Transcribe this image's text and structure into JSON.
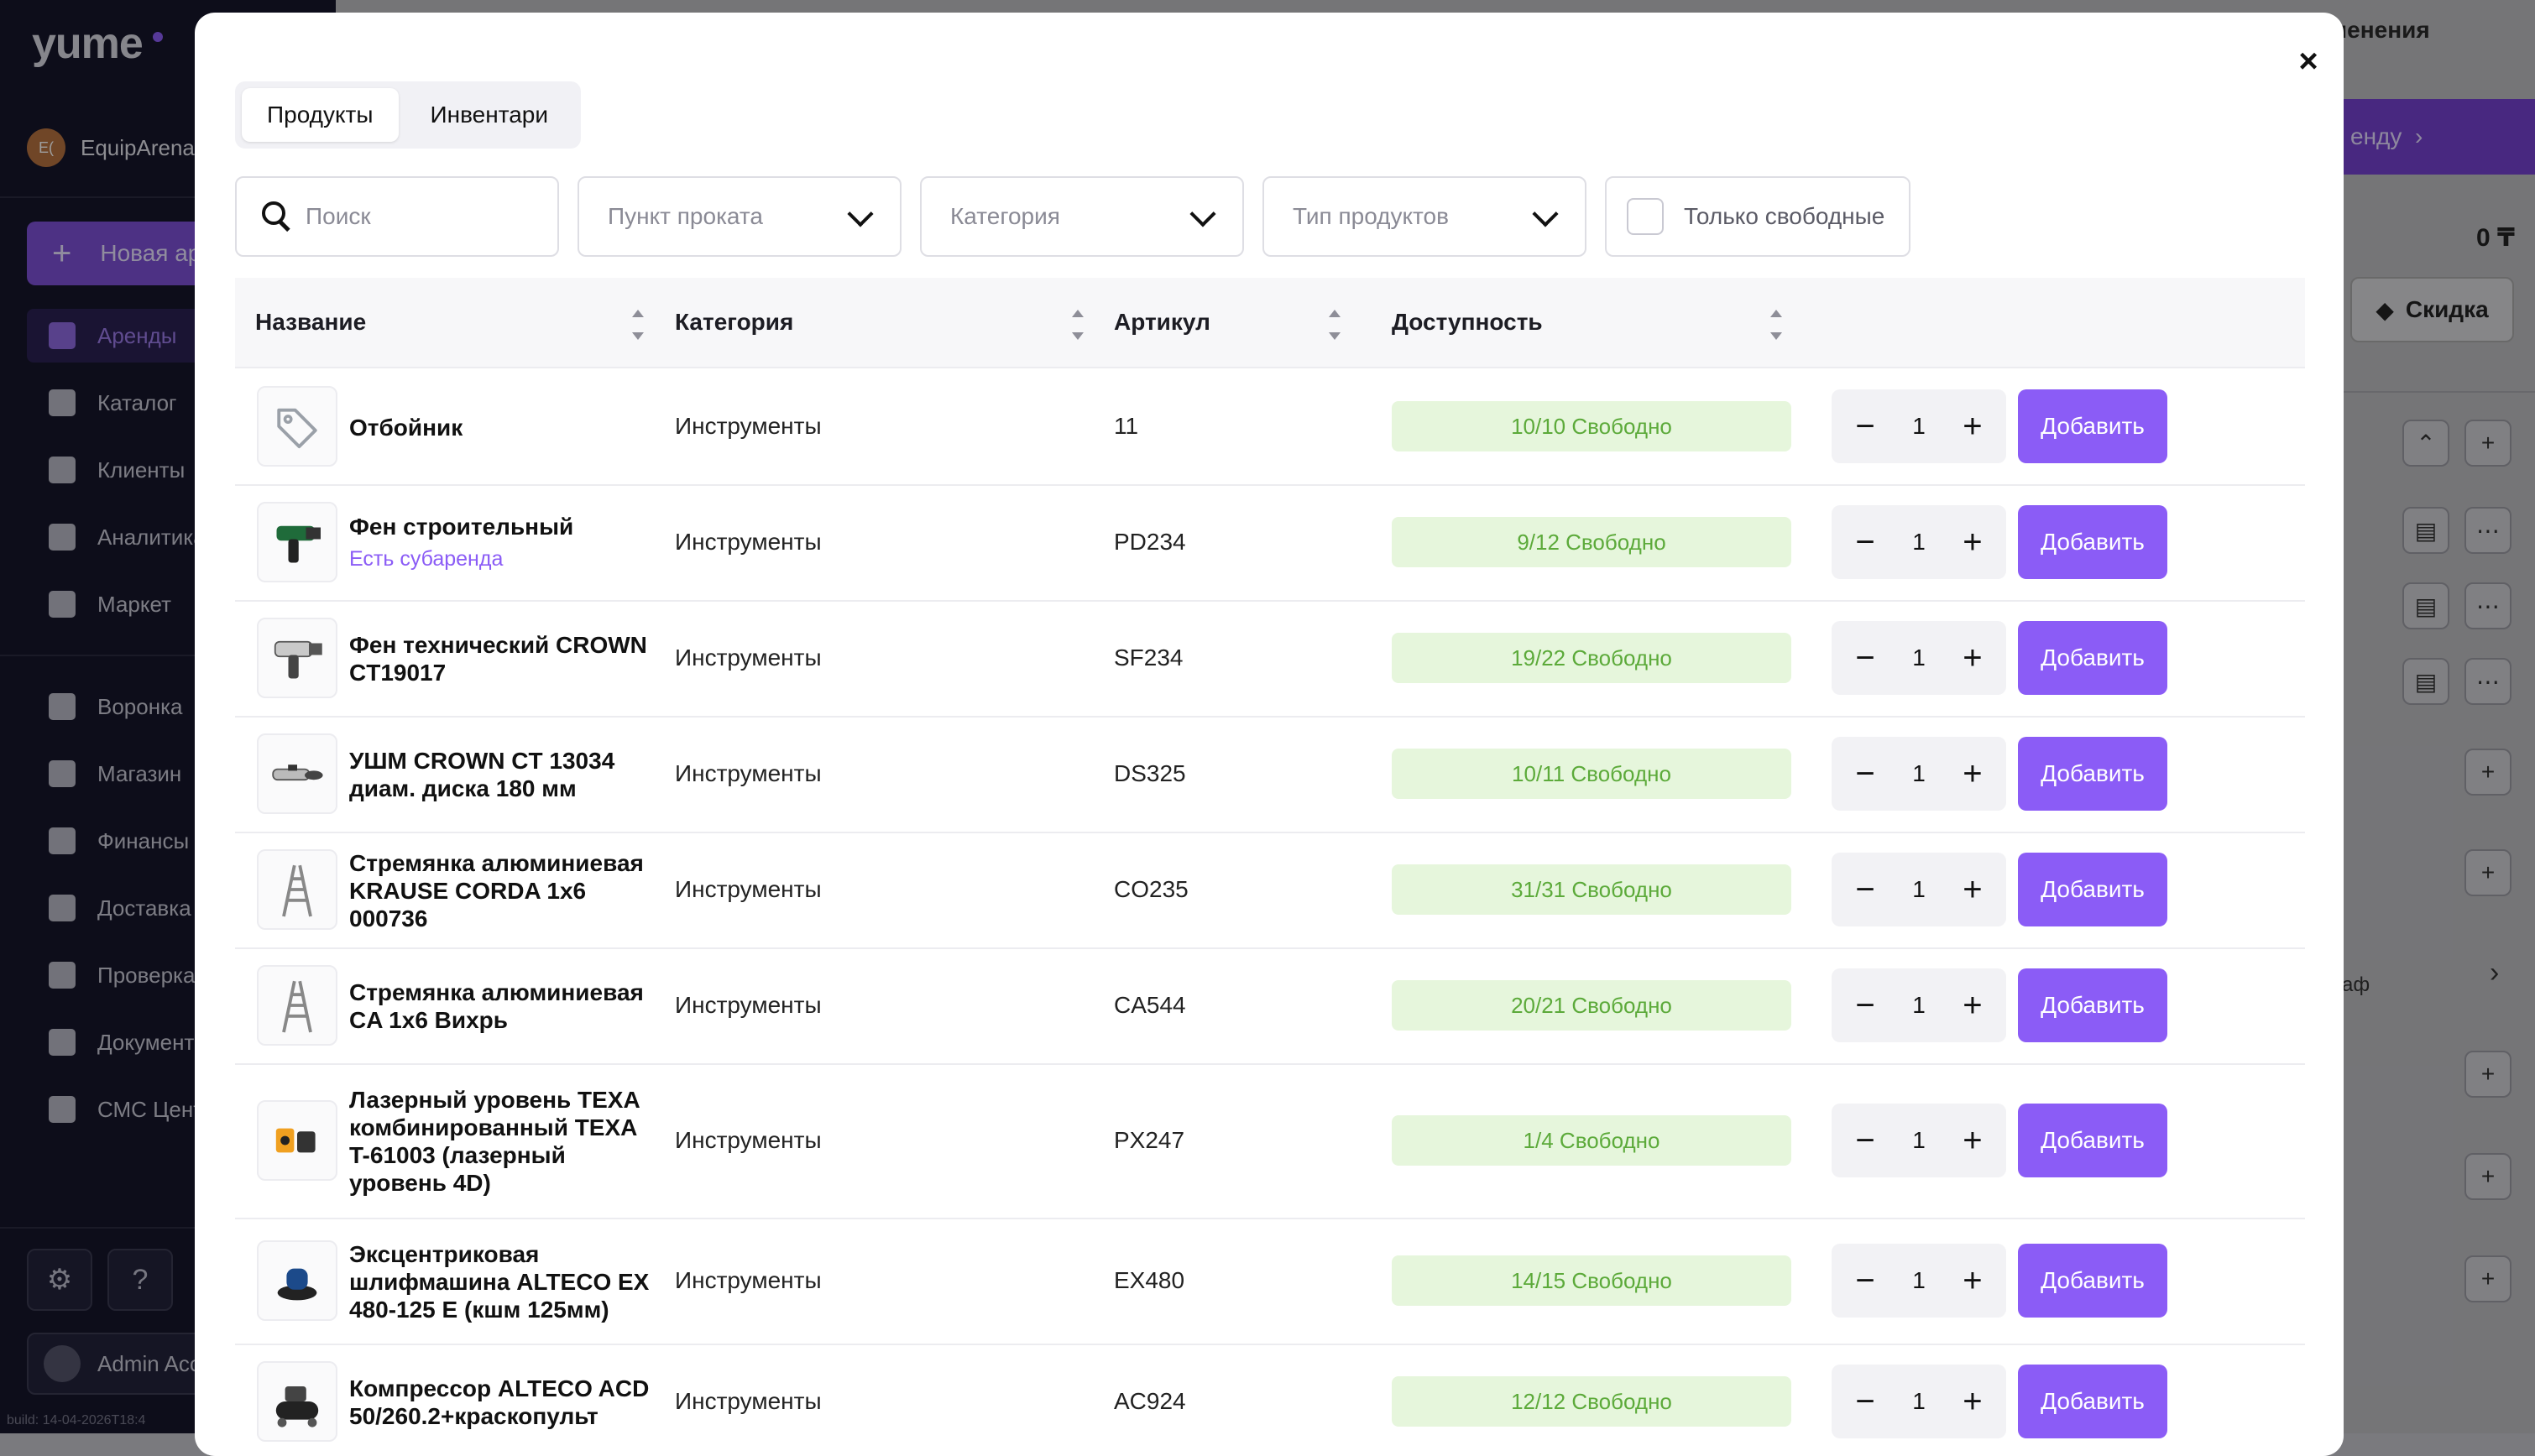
{
  "app": {
    "logo": "yume",
    "org_initials": "E(",
    "org_name": "EquipArena",
    "new_button": "Новая аренда",
    "nav": [
      {
        "label": "Аренды",
        "icon": "list-icon",
        "active": true
      },
      {
        "label": "Каталог",
        "icon": "archive-icon"
      },
      {
        "label": "Клиенты",
        "icon": "users-icon"
      },
      {
        "label": "Аналитика",
        "icon": "analytics-icon"
      },
      {
        "label": "Маркет",
        "icon": "puzzle-icon"
      },
      {
        "label": "Воронка",
        "icon": "funnel-icon"
      },
      {
        "label": "Магазин",
        "icon": "store-icon"
      },
      {
        "label": "Финансы",
        "icon": "finance-icon"
      },
      {
        "label": "Доставка",
        "icon": "truck-icon"
      },
      {
        "label": "Проверка",
        "icon": "scan-icon"
      },
      {
        "label": "Документы",
        "icon": "document-icon"
      },
      {
        "label": "СМС Центр",
        "icon": "sms-icon"
      }
    ],
    "settings_icon": "⚙",
    "help_icon": "?",
    "admin_name": "Admin Account",
    "build": "build: 14-04-2026T18:4"
  },
  "background": {
    "save_changes": "ь изменения",
    "rent_button": "енду",
    "total": "0 ₸",
    "discount": "Скидка",
    "small_text": "аф"
  },
  "modal": {
    "close": "×",
    "tabs": [
      {
        "label": "Продукты",
        "active": true
      },
      {
        "label": "Инвентари",
        "active": false
      }
    ],
    "filters": {
      "search_placeholder": "Поиск",
      "rental_point": "Пункт проката",
      "category": "Категория",
      "product_type": "Тип продуктов",
      "only_free": "Только свободные"
    },
    "columns": [
      "Название",
      "Категория",
      "Артикул",
      "Доступность"
    ],
    "add_label": "Добавить",
    "rows": [
      {
        "name": "Отбойник",
        "sub": "",
        "category": "Инструменты",
        "sku": "11",
        "availability": "10/10 Свободно",
        "qty": "1",
        "thumb": "tag"
      },
      {
        "name": "Фен строительный",
        "sub": "Есть субаренда",
        "category": "Инструменты",
        "sku": "PD234",
        "availability": "9/12 Свободно",
        "qty": "1",
        "thumb": "heatgun"
      },
      {
        "name": "Фен технический CROWN CT19017",
        "sub": "",
        "category": "Инструменты",
        "sku": "SF234",
        "availability": "19/22 Свободно",
        "qty": "1",
        "thumb": "heatgun2"
      },
      {
        "name": "УШМ CROWN CT 13034 диам. диска 180 мм",
        "sub": "",
        "category": "Инструменты",
        "sku": "DS325",
        "availability": "10/11 Свободно",
        "qty": "1",
        "thumb": "grinder"
      },
      {
        "name": "Стремянка алюминиевая KRAUSE CORDA 1x6 000736",
        "sub": "",
        "category": "Инструменты",
        "sku": "CO235",
        "availability": "31/31 Свободно",
        "qty": "1",
        "thumb": "ladder"
      },
      {
        "name": "Стремянка алюминиевая CA 1x6 Вихрь",
        "sub": "",
        "category": "Инструменты",
        "sku": "CA544",
        "availability": "20/21 Свободно",
        "qty": "1",
        "thumb": "ladder"
      },
      {
        "name": "Лазерный уровень TEXA комбинированный TEXA T-61003 (лазерный уровень 4D)",
        "sub": "",
        "category": "Инструменты",
        "sku": "PX247",
        "availability": "1/4 Свободно",
        "qty": "1",
        "thumb": "laser"
      },
      {
        "name": "Эксцентриковая шлифмашина ALTECO EX 480-125 E (кшм 125мм)",
        "sub": "",
        "category": "Инструменты",
        "sku": "EX480",
        "availability": "14/15 Свободно",
        "qty": "1",
        "thumb": "sander"
      },
      {
        "name": "Компрессор ALTECO ACD 50/260.2+краскопульт",
        "sub": "",
        "category": "Инструменты",
        "sku": "AC924",
        "availability": "12/12 Свободно",
        "qty": "1",
        "thumb": "compressor"
      }
    ]
  }
}
